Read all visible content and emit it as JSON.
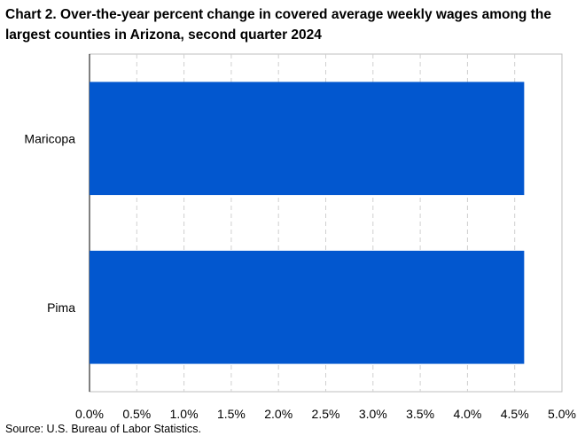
{
  "chart_data": {
    "type": "bar",
    "orientation": "horizontal",
    "title": "Chart 2. Over-the-year percent change in covered average weekly wages among the largest counties in Arizona, second quarter 2024",
    "categories": [
      "Maricopa",
      "Pima"
    ],
    "values": [
      4.6,
      4.6
    ],
    "xlim": [
      0,
      5.0
    ],
    "xticks": [
      0,
      0.5,
      1.0,
      1.5,
      2.0,
      2.5,
      3.0,
      3.5,
      4.0,
      4.5,
      5.0
    ],
    "xtick_labels": [
      "0.0%",
      "0.5%",
      "1.0%",
      "1.5%",
      "2.0%",
      "2.5%",
      "3.0%",
      "3.5%",
      "4.0%",
      "4.5%",
      "5.0%"
    ],
    "xlabel": "",
    "ylabel": "",
    "grid": "vertical dashed",
    "legend": "none",
    "bar_color": "#0257CF",
    "source": "Source: U.S. Bureau of Labor Statistics."
  }
}
